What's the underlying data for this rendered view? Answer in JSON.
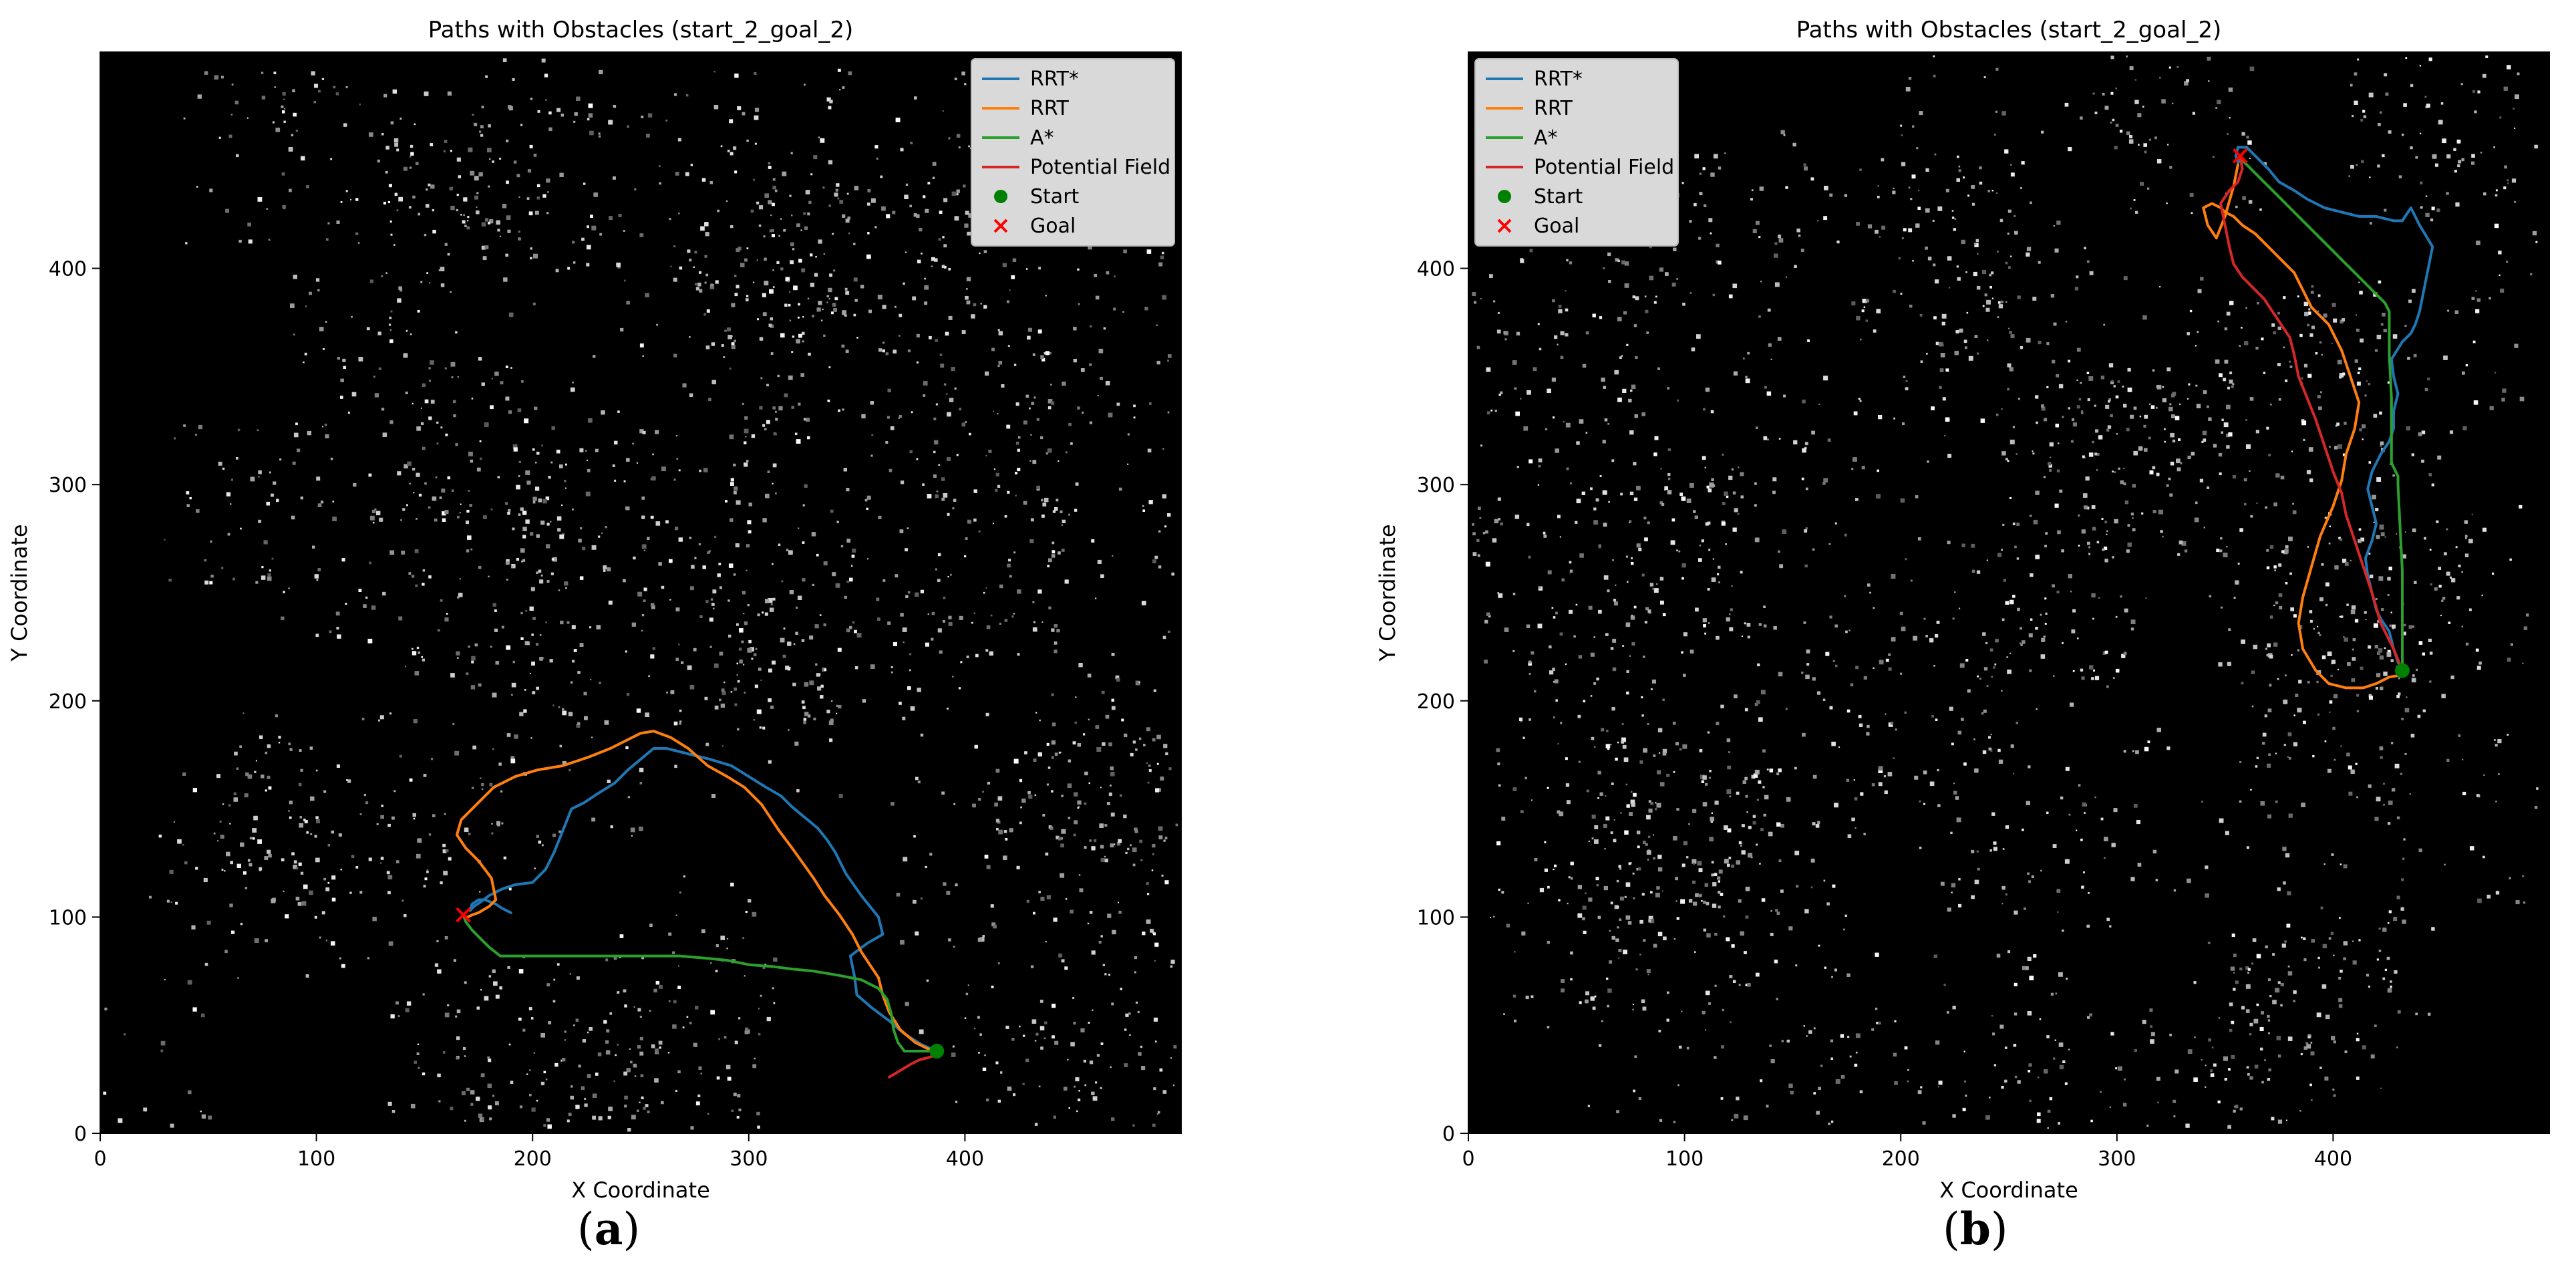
{
  "panels": [
    {
      "id": "a",
      "caption_label": "a",
      "chart_data": {
        "type": "line",
        "title": "Paths with Obstacles (start_2_goal_2)",
        "xlabel": "X Coordinate",
        "ylabel": "Y Coordinate",
        "xlim": [
          0,
          500
        ],
        "ylim": [
          0,
          500
        ],
        "xticks": [
          0,
          100,
          200,
          300,
          400
        ],
        "yticks": [
          0,
          100,
          200,
          300,
          400
        ],
        "background": "#000000",
        "legend_position": "top-right",
        "series": [
          {
            "name": "RRT*",
            "color": "#1f77b4",
            "x": [
              387,
              380,
              372,
              365,
              357,
              350,
              349,
              347,
              355,
              362,
              360,
              352,
              345,
              340,
              336,
              332,
              326,
              320,
              315,
              308,
              300,
              292,
              282,
              270,
              262,
              256,
              250,
              244,
              238,
              230,
              224,
              218,
              214,
              210,
              206,
              200,
              192,
              186,
              180,
              176,
              173,
              171,
              172,
              175,
              178,
              183,
              186,
              188,
              190
            ],
            "y": [
              38,
              41,
              46,
              52,
              58,
              64,
              72,
              82,
              88,
              92,
              100,
              110,
              120,
              130,
              136,
              141,
              146,
              151,
              156,
              160,
              165,
              170,
              173,
              176,
              178,
              178,
              173,
              168,
              162,
              157,
              153,
              150,
              140,
              130,
              122,
              116,
              115,
              113,
              110,
              107,
              105,
              103,
              106,
              108,
              108,
              106,
              104,
              103,
              102
            ]
          },
          {
            "name": "RRT",
            "color": "#ff7f0e",
            "x": [
              385,
              377,
              370,
              365,
              362,
              360,
              356,
              352,
              348,
              342,
              335,
              330,
              325,
              320,
              314,
              306,
              298,
              290,
              281,
              272,
              264,
              256,
              250,
              244,
              236,
              226,
              214,
              202,
              192,
              182,
              174,
              167,
              165,
              169,
              175,
              181,
              183,
              180,
              175,
              172,
              170,
              169
            ],
            "y": [
              38,
              42,
              48,
              56,
              64,
              72,
              78,
              84,
              92,
              101,
              110,
              118,
              125,
              132,
              140,
              152,
              160,
              165,
              170,
              178,
              183,
              186,
              185,
              182,
              178,
              174,
              170,
              168,
              165,
              160,
              152,
              145,
              138,
              132,
              126,
              118,
              108,
              105,
              102,
              101,
              100,
              100
            ]
          },
          {
            "name": "A*",
            "color": "#2ca02c",
            "x": [
              387,
              379,
              372,
              369,
              367,
              366,
              364,
              360,
              352,
              342,
              330,
              320,
              312,
              300,
              290,
              280,
              268,
              250,
              230,
              210,
              195,
              185,
              180,
              176,
              172,
              169,
              168
            ],
            "y": [
              38,
              38,
              38,
              42,
              48,
              55,
              62,
              67,
              71,
              73,
              75,
              76,
              77,
              78,
              80,
              81,
              82,
              82,
              82,
              82,
              82,
              82,
              86,
              90,
              94,
              98,
              101
            ]
          },
          {
            "name": "Potential Field",
            "color": "#d62728",
            "x": [
              365,
              370,
              375,
              379,
              383,
              386,
              387
            ],
            "y": [
              26,
              29,
              32,
              34,
              35,
              36,
              37
            ]
          }
        ],
        "points": [
          {
            "name": "Start",
            "marker": "o",
            "color": "#008000",
            "x": 387,
            "y": 38
          },
          {
            "name": "Goal",
            "marker": "x",
            "color": "#ff0000",
            "x": 168,
            "y": 101
          }
        ]
      }
    },
    {
      "id": "b",
      "caption_label": "b",
      "chart_data": {
        "type": "line",
        "title": "Paths with Obstacles (start_2_goal_2)",
        "xlabel": "X Coordinate",
        "ylabel": "Y Coordinate",
        "xlim": [
          0,
          500
        ],
        "ylim": [
          0,
          500
        ],
        "xticks": [
          0,
          100,
          200,
          300,
          400
        ],
        "yticks": [
          0,
          100,
          200,
          300,
          400
        ],
        "background": "#000000",
        "legend_position": "top-left",
        "series": [
          {
            "name": "RRT*",
            "color": "#1f77b4",
            "x": [
              432,
              430,
              428,
              426,
              422,
              420,
              418,
              416,
              415,
              418,
              420,
              418,
              416,
              418,
              422,
              426,
              428,
              428,
              430,
              428,
              427,
              432,
              436,
              438,
              440,
              442,
              444,
              446,
              440,
              436,
              432,
              428,
              424,
              420,
              412,
              404,
              396,
              388,
              382,
              375,
              370,
              364,
              360,
              356,
              355,
              356,
              358
            ],
            "y": [
              214,
              218,
              224,
              232,
              238,
              242,
              250,
              258,
              266,
              274,
              282,
              290,
              298,
              306,
              314,
              320,
              326,
              334,
              342,
              350,
              358,
              366,
              370,
              374,
              380,
              390,
              400,
              410,
              420,
              428,
              422,
              422,
              423,
              424,
              424,
              426,
              428,
              432,
              436,
              440,
              446,
              452,
              456,
              456,
              452,
              449,
              450
            ]
          },
          {
            "name": "RRT",
            "color": "#ff7f0e",
            "x": [
              432,
              426,
              420,
              414,
              406,
              398,
              392,
              386,
              384,
              386,
              390,
              394,
              400,
              404,
              406,
              410,
              412,
              408,
              404,
              398,
              394,
              390,
              386,
              382,
              376,
              370,
              364,
              358,
              354,
              350,
              348,
              344,
              340,
              342,
              346,
              350,
              354,
              356
            ],
            "y": [
              212,
              211,
              208,
              206,
              206,
              208,
              214,
              224,
              236,
              248,
              262,
              276,
              290,
              302,
              314,
              326,
              338,
              350,
              362,
              374,
              378,
              382,
              390,
              398,
              404,
              410,
              416,
              420,
              424,
              426,
              428,
              430,
              428,
              420,
              414,
              424,
              438,
              448
            ]
          },
          {
            "name": "A*",
            "color": "#2ca02c",
            "x": [
              432,
              432,
              432,
              432,
              431,
              430,
              430,
              429,
              428,
              427,
              427,
              427,
              426,
              426,
              426,
              425,
              424,
              420,
              416,
              410,
              404,
              398,
              392,
              386,
              380,
              374,
              368,
              362,
              358,
              356
            ],
            "y": [
              214,
              220,
              240,
              260,
              280,
              300,
              304,
              306,
              308,
              310,
              320,
              340,
              360,
              370,
              380,
              382,
              384,
              388,
              392,
              398,
              404,
              410,
              416,
              422,
              428,
              434,
              440,
              446,
              450,
              451
            ]
          },
          {
            "name": "Potential Field",
            "color": "#d62728",
            "x": [
              432,
              428,
              422,
              418,
              414,
              410,
              406,
              404,
              400,
              396,
              392,
              388,
              384,
              382,
              380,
              376,
              372,
              368,
              362,
              358,
              354,
              352,
              350,
              348,
              352,
              356,
              358,
              357
            ],
            "y": [
              214,
              224,
              236,
              250,
              262,
              274,
              286,
              296,
              306,
              318,
              330,
              340,
              350,
              360,
              368,
              374,
              380,
              386,
              392,
              396,
              402,
              410,
              420,
              430,
              436,
              440,
              446,
              452
            ]
          }
        ],
        "points": [
          {
            "name": "Start",
            "marker": "o",
            "color": "#008000",
            "x": 432,
            "y": 214
          },
          {
            "name": "Goal",
            "marker": "x",
            "color": "#ff0000",
            "x": 357,
            "y": 452
          }
        ]
      }
    }
  ]
}
